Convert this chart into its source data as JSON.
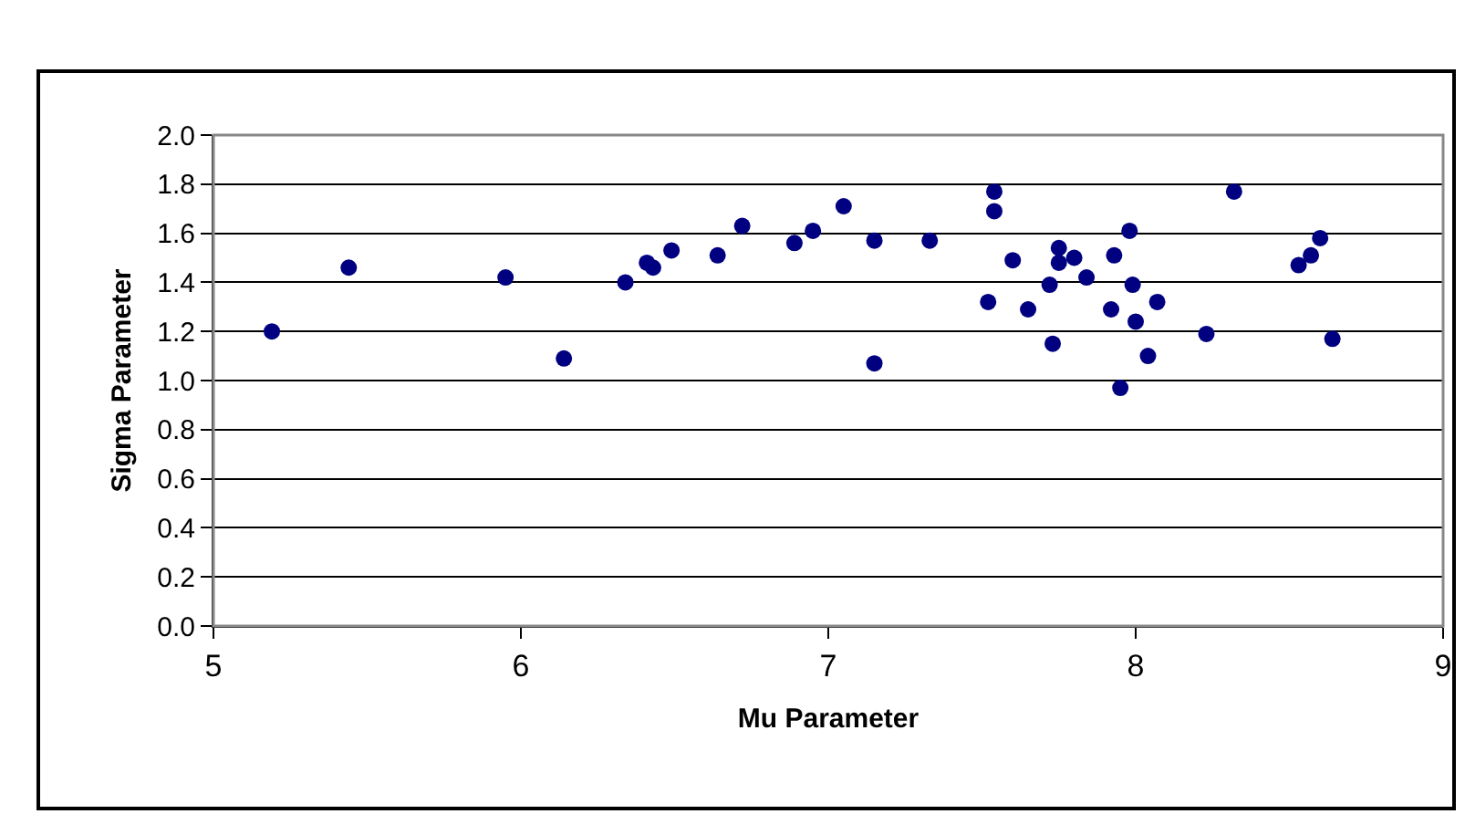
{
  "chart_data": {
    "type": "scatter",
    "xlabel": "Mu Parameter",
    "ylabel": "Sigma Parameter",
    "xlim": [
      5,
      9
    ],
    "xticks": [
      5,
      6,
      7,
      8,
      9
    ],
    "ylim": [
      0,
      2
    ],
    "yticks": [
      {
        "value": 0,
        "label": "0.0"
      },
      {
        "value": 0.2,
        "label": "0.2"
      },
      {
        "value": 0.4,
        "label": "0.4"
      },
      {
        "value": 0.6,
        "label": "0.6"
      },
      {
        "value": 0.8,
        "label": "0.8"
      },
      {
        "value": 1,
        "label": "1.0"
      },
      {
        "value": 1.2,
        "label": "1.2"
      },
      {
        "value": 1.4,
        "label": "1.4"
      },
      {
        "value": 1.6,
        "label": "1.6"
      },
      {
        "value": 1.8,
        "label": "1.8"
      },
      {
        "value": 2,
        "label": "2.0"
      }
    ],
    "grid": "y",
    "marker": "circle",
    "series": [
      {
        "color": "#000080",
        "x": [
          5.19,
          5.44,
          5.95,
          6.14,
          6.34,
          6.41,
          6.43,
          6.49,
          6.64,
          6.72,
          6.89,
          6.95,
          7.05,
          7.15,
          7.15,
          7.33,
          7.54,
          7.54,
          7.52,
          7.6,
          7.65,
          7.72,
          7.73,
          7.75,
          7.75,
          7.8,
          7.84,
          7.92,
          7.93,
          7.95,
          7.98,
          7.99,
          8.0,
          8.04,
          8.07,
          8.23,
          8.32,
          8.53,
          8.57,
          8.6,
          8.64
        ],
        "values": [
          1.2,
          1.46,
          1.42,
          1.09,
          1.4,
          1.48,
          1.46,
          1.53,
          1.51,
          1.63,
          1.56,
          1.61,
          1.71,
          1.57,
          1.07,
          1.57,
          1.77,
          1.69,
          1.32,
          1.49,
          1.29,
          1.39,
          1.15,
          1.54,
          1.48,
          1.5,
          1.42,
          1.29,
          1.51,
          0.97,
          1.61,
          1.39,
          1.24,
          1.1,
          1.32,
          1.19,
          1.77,
          1.47,
          1.51,
          1.58,
          1.17
        ]
      }
    ]
  }
}
